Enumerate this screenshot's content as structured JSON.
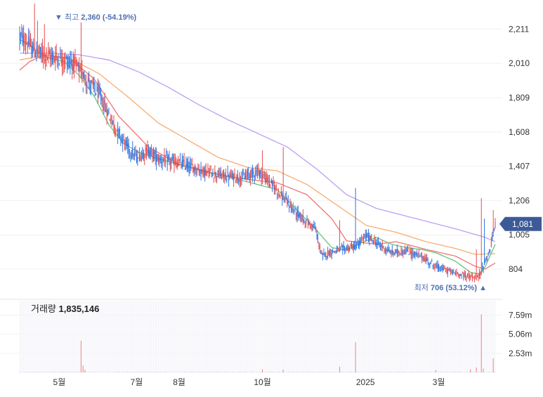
{
  "chart_data": {
    "type": "candlestick",
    "price_panel": {
      "ylim": [
        660,
        2340
      ],
      "y_ticks": [
        "2,211",
        "2,010",
        "1,809",
        "1,608",
        "1,407",
        "1,206",
        "1,005",
        "804"
      ],
      "y_tick_values": [
        2211,
        2010,
        1809,
        1608,
        1407,
        1206,
        1005,
        804
      ],
      "high_annotation": {
        "label": "최고",
        "value_text": "2,360 (-54.19%)",
        "value": 2360
      },
      "low_annotation": {
        "label": "최저",
        "value_text": "706 (53.12%)",
        "value": 706
      },
      "last_price": {
        "text": "1,081",
        "value": 1081
      },
      "ma_anchors": [
        {
          "name": "",
          "color": "#f06b6b",
          "points": [
            [
              0,
              1970
            ],
            [
              10,
              2020
            ],
            [
              25,
              2060
            ],
            [
              50,
              2040
            ],
            [
              75,
              1920
            ],
            [
              100,
              1700
            ],
            [
              130,
              1520
            ],
            [
              160,
              1420
            ],
            [
              190,
              1370
            ],
            [
              230,
              1330
            ],
            [
              260,
              1310
            ],
            [
              290,
              1240
            ],
            [
              315,
              1100
            ],
            [
              330,
              970
            ],
            [
              360,
              950
            ],
            [
              380,
              965
            ],
            [
              410,
              920
            ],
            [
              440,
              880
            ],
            [
              460,
              820
            ],
            [
              470,
              805
            ],
            [
              480,
              840
            ]
          ]
        },
        {
          "name": "",
          "color": "#f7a96a",
          "points": [
            [
              0,
              2030
            ],
            [
              20,
              2050
            ],
            [
              50,
              2040
            ],
            [
              80,
              1950
            ],
            [
              110,
              1810
            ],
            [
              140,
              1660
            ],
            [
              170,
              1560
            ],
            [
              200,
              1460
            ],
            [
              230,
              1400
            ],
            [
              260,
              1380
            ],
            [
              290,
              1300
            ],
            [
              320,
              1180
            ],
            [
              350,
              1060
            ],
            [
              380,
              1020
            ],
            [
              410,
              965
            ],
            [
              440,
              925
            ],
            [
              460,
              890
            ],
            [
              480,
              895
            ]
          ]
        },
        {
          "name": "",
          "color": "#b99af0",
          "points": [
            [
              0,
              2070
            ],
            [
              30,
              2070
            ],
            [
              60,
              2060
            ],
            [
              90,
              2030
            ],
            [
              120,
              1960
            ],
            [
              150,
              1870
            ],
            [
              180,
              1770
            ],
            [
              210,
              1680
            ],
            [
              240,
              1600
            ],
            [
              270,
              1520
            ],
            [
              300,
              1390
            ],
            [
              330,
              1240
            ],
            [
              360,
              1160
            ],
            [
              400,
              1100
            ],
            [
              440,
              1040
            ],
            [
              470,
              990
            ],
            [
              480,
              965
            ]
          ]
        },
        {
          "name": "",
          "color": "#5fbf7a",
          "points": [
            [
              0,
              2150
            ],
            [
              10,
              2120
            ],
            [
              20,
              2070
            ],
            [
              30,
              2040
            ],
            [
              45,
              2020
            ],
            [
              60,
              1940
            ],
            [
              75,
              1820
            ],
            [
              90,
              1650
            ],
            [
              105,
              1540
            ],
            [
              120,
              1490
            ],
            [
              140,
              1450
            ],
            [
              160,
              1420
            ],
            [
              180,
              1390
            ],
            [
              200,
              1360
            ],
            [
              220,
              1330
            ],
            [
              240,
              1300
            ],
            [
              260,
              1270
            ],
            [
              280,
              1150
            ],
            [
              300,
              1030
            ],
            [
              315,
              930
            ],
            [
              330,
              915
            ],
            [
              345,
              960
            ],
            [
              360,
              990
            ],
            [
              375,
              950
            ],
            [
              390,
              930
            ],
            [
              405,
              920
            ],
            [
              420,
              900
            ],
            [
              440,
              850
            ],
            [
              455,
              785
            ],
            [
              465,
              775
            ],
            [
              470,
              820
            ],
            [
              480,
              950
            ]
          ]
        }
      ],
      "candle_anchors": [
        [
          0,
          2170
        ],
        [
          8,
          2130
        ],
        [
          15,
          2080
        ],
        [
          25,
          2060
        ],
        [
          40,
          2040
        ],
        [
          55,
          2010
        ],
        [
          70,
          1900
        ],
        [
          80,
          1830
        ],
        [
          95,
          1650
        ],
        [
          110,
          1510
        ],
        [
          118,
          1460
        ],
        [
          130,
          1500
        ],
        [
          140,
          1450
        ],
        [
          165,
          1420
        ],
        [
          185,
          1380
        ],
        [
          205,
          1350
        ],
        [
          225,
          1340
        ],
        [
          240,
          1380
        ],
        [
          255,
          1300
        ],
        [
          265,
          1230
        ],
        [
          278,
          1140
        ],
        [
          290,
          1080
        ],
        [
          298,
          1050
        ],
        [
          305,
          880
        ],
        [
          312,
          900
        ],
        [
          325,
          920
        ],
        [
          340,
          940
        ],
        [
          350,
          1000
        ],
        [
          360,
          960
        ],
        [
          375,
          900
        ],
        [
          390,
          910
        ],
        [
          405,
          880
        ],
        [
          420,
          820
        ],
        [
          440,
          780
        ],
        [
          455,
          760
        ],
        [
          462,
          748
        ],
        [
          468,
          820
        ],
        [
          475,
          920
        ],
        [
          480,
          1081
        ]
      ],
      "spike_candles": [
        {
          "i": 15,
          "high": 2360,
          "color": "red"
        },
        {
          "i": 18,
          "high": 2260,
          "color": "red"
        },
        {
          "i": 25,
          "high": 2240,
          "color": "red"
        },
        {
          "i": 62,
          "high": 2250,
          "color": "red"
        },
        {
          "i": 64,
          "high": 1840,
          "color": "blue"
        },
        {
          "i": 120,
          "high": 1460,
          "color": "red"
        },
        {
          "i": 126,
          "high": 1480,
          "color": "red"
        },
        {
          "i": 245,
          "high": 1500,
          "color": "red"
        },
        {
          "i": 266,
          "high": 1520,
          "color": "red"
        },
        {
          "i": 323,
          "high": 1090,
          "color": "red"
        },
        {
          "i": 339,
          "high": 1280,
          "color": "blue"
        },
        {
          "i": 461,
          "high": 920,
          "color": "red"
        },
        {
          "i": 466,
          "high": 1220,
          "color": "red"
        },
        {
          "i": 469,
          "high": 1100,
          "color": "blue"
        },
        {
          "i": 478,
          "high": 1150,
          "color": "red"
        }
      ],
      "colors": {
        "up": "#e74c4c",
        "down": "#2f74e0"
      }
    },
    "volume_panel": {
      "title": "거래량",
      "value_text": "1,835,146",
      "ylim": [
        0,
        9500000
      ],
      "y_ticks": [
        "7.59m",
        "5.06m",
        "2.53m"
      ],
      "y_tick_values": [
        7590000,
        5060000,
        2530000
      ],
      "base_volume": 60000,
      "spikes": [
        {
          "i": 62,
          "value": 4200000,
          "color": "red"
        },
        {
          "i": 64,
          "value": 900000,
          "color": "red"
        },
        {
          "i": 66,
          "value": 350000,
          "color": "red"
        },
        {
          "i": 245,
          "value": 420000,
          "color": "red"
        },
        {
          "i": 266,
          "value": 380000,
          "color": "red"
        },
        {
          "i": 323,
          "value": 750000,
          "color": "red"
        },
        {
          "i": 339,
          "value": 4000000,
          "color": "red"
        },
        {
          "i": 420,
          "value": 320000,
          "color": "red"
        },
        {
          "i": 455,
          "value": 400000,
          "color": "red"
        },
        {
          "i": 461,
          "value": 650000,
          "color": "red"
        },
        {
          "i": 466,
          "value": 7700000,
          "color": "red"
        },
        {
          "i": 468,
          "value": 500000,
          "color": "red"
        },
        {
          "i": 478,
          "value": 1835146,
          "color": "red"
        }
      ]
    },
    "x_axis": {
      "n": 481,
      "ticks": [
        {
          "label": "5월",
          "i": 40
        },
        {
          "label": "7월",
          "i": 118
        },
        {
          "label": "8월",
          "i": 161
        },
        {
          "label": "10월",
          "i": 245
        },
        {
          "label": "2025",
          "i": 349
        },
        {
          "label": "3월",
          "i": 423
        }
      ]
    },
    "grid": true
  }
}
